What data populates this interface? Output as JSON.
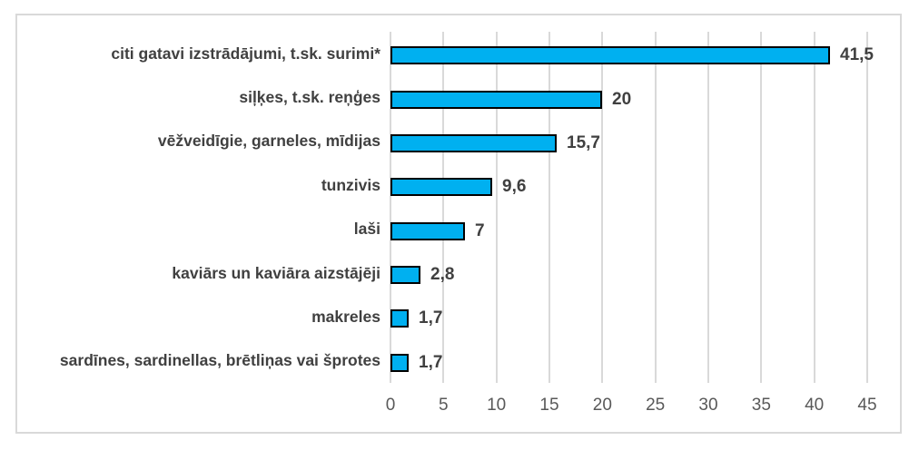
{
  "chart_data": {
    "type": "bar",
    "orientation": "horizontal",
    "title": "",
    "xlabel": "",
    "ylabel": "",
    "categories": [
      "citi gatavi izstrādājumi, t.sk. surimi*",
      "siļķes, t.sk. reņģes",
      "vēžveidīgie, garneles, mīdijas",
      "tunzivis",
      "laši",
      "kaviārs un kaviāra aizstājēji",
      "makreles",
      "sardīnes, sardinellas, brētliņas vai šprotes"
    ],
    "values": [
      41.5,
      20,
      15.7,
      9.6,
      7,
      2.8,
      1.7,
      1.7
    ],
    "value_labels": [
      "41,5",
      "20",
      "15,7",
      "9,6",
      "7",
      "2,8",
      "1,7",
      "1,7"
    ],
    "xlim": [
      0,
      45
    ],
    "x_ticks": [
      0,
      5,
      10,
      15,
      20,
      25,
      30,
      35,
      40,
      45
    ],
    "x_tick_labels": [
      "0",
      "5",
      "10",
      "15",
      "20",
      "25",
      "30",
      "35",
      "40",
      "45"
    ],
    "grid": true,
    "legend": "none",
    "colors": {
      "bar_fill": "#00B0F0",
      "bar_border": "#000000",
      "gridline": "#D9D9D9",
      "frame_border": "#D9D9D9",
      "category_label": "#404040",
      "value_label": "#404040",
      "tick_label": "#595959",
      "background": "#FFFFFF"
    }
  }
}
